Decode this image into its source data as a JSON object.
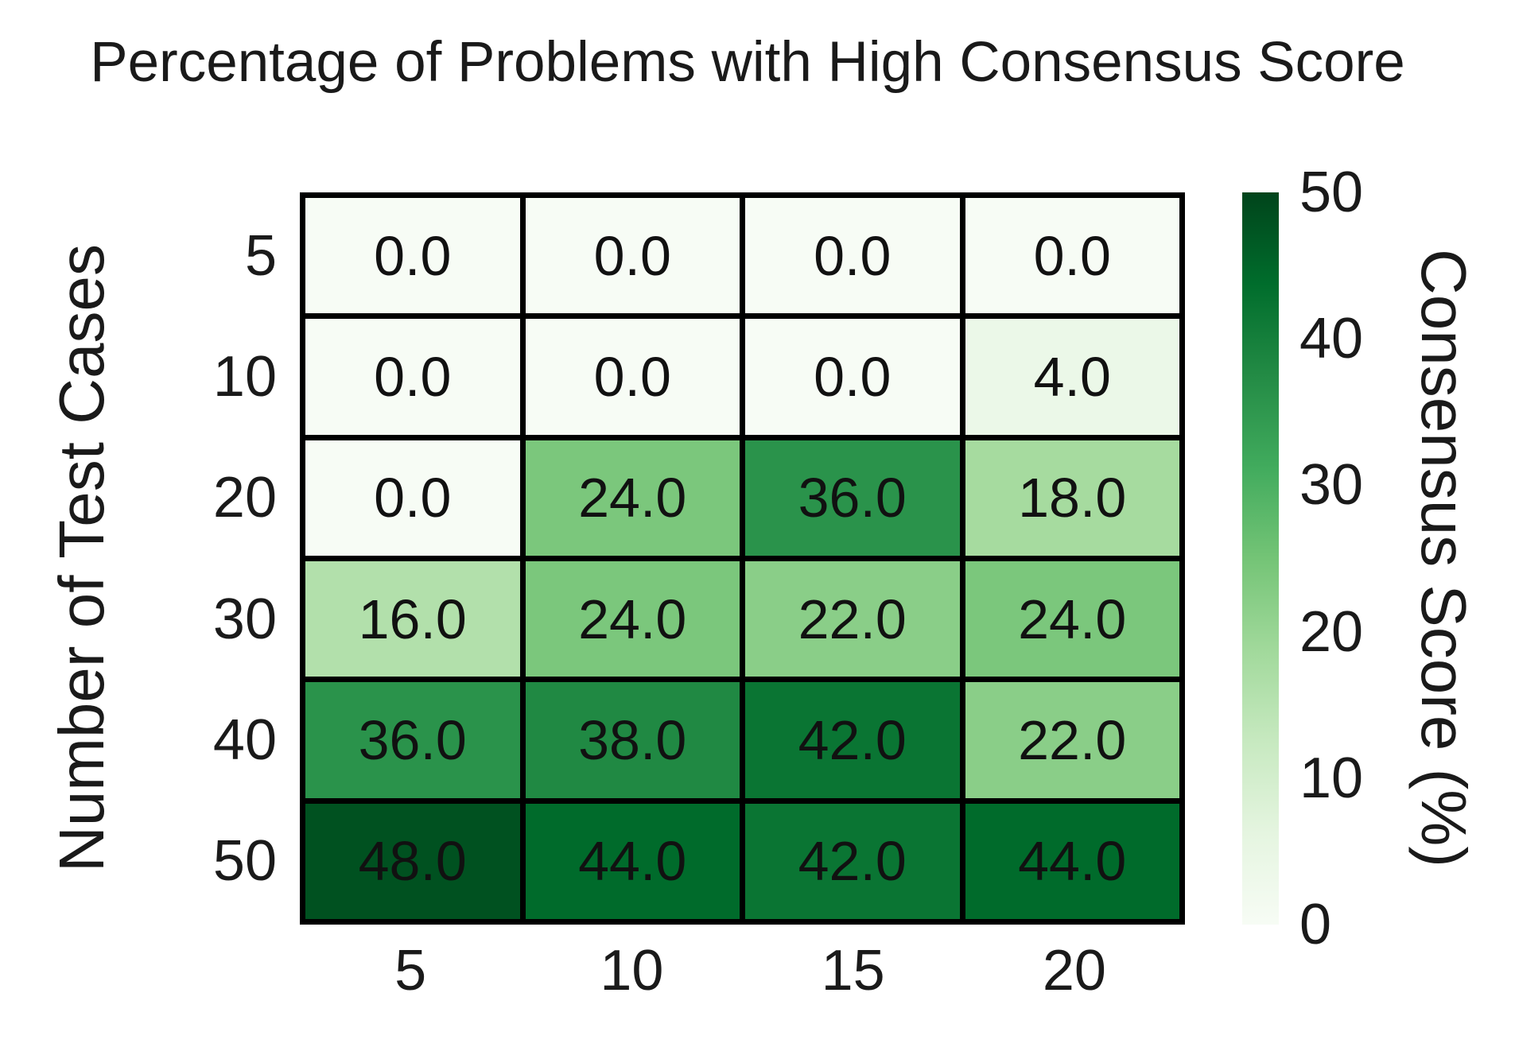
{
  "title": "Percentage of Problems with High Consensus Score",
  "chart_data": {
    "type": "heatmap",
    "title": "Percentage of Problems with High Consensus Score",
    "xlabel": "",
    "ylabel": "Number of Test Cases",
    "x_categories": [
      "5",
      "10",
      "15",
      "20"
    ],
    "y_categories": [
      "5",
      "10",
      "20",
      "30",
      "40",
      "50"
    ],
    "values": [
      [
        0.0,
        0.0,
        0.0,
        0.0
      ],
      [
        0.0,
        0.0,
        0.0,
        4.0
      ],
      [
        0.0,
        24.0,
        36.0,
        18.0
      ],
      [
        16.0,
        24.0,
        22.0,
        24.0
      ],
      [
        36.0,
        38.0,
        42.0,
        22.0
      ],
      [
        48.0,
        44.0,
        42.0,
        44.0
      ]
    ],
    "annotation_decimals": 1,
    "vmin": 0,
    "vmax": 50,
    "colormap": "Greens",
    "colormap_anchors": [
      "#f7fcf5",
      "#e5f5e0",
      "#c7e9c0",
      "#a1d99b",
      "#74c476",
      "#41ab5d",
      "#238b45",
      "#006d2c",
      "#00441b"
    ],
    "grid_line_color": "#000000",
    "annotation_color": "#111111",
    "colorbar": {
      "label": "Consensus Score (%)",
      "tick_values": [
        0,
        10,
        20,
        30,
        40,
        50
      ],
      "min": 0,
      "max": 50,
      "position": "right"
    }
  }
}
